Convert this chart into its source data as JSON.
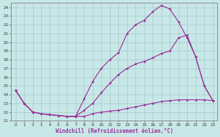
{
  "xlabel": "Windchill (Refroidissement éolien,°C)",
  "background_color": "#c8e8e8",
  "grid_color": "#aacccc",
  "line_color": "#993399",
  "xlim": [
    -0.5,
    23.5
  ],
  "ylim": [
    11,
    24.5
  ],
  "xticks": [
    0,
    1,
    2,
    3,
    4,
    5,
    6,
    7,
    8,
    9,
    10,
    11,
    12,
    13,
    14,
    15,
    16,
    17,
    18,
    19,
    20,
    21,
    22,
    23
  ],
  "yticks": [
    11,
    12,
    13,
    14,
    15,
    16,
    17,
    18,
    19,
    20,
    21,
    22,
    23,
    24
  ],
  "curve_top_x": [
    0,
    1,
    2,
    3,
    4,
    5,
    6,
    7,
    8,
    9,
    10,
    11,
    12,
    13,
    14,
    15,
    16,
    17,
    18,
    19,
    20,
    21,
    22,
    23
  ],
  "curve_top_y": [
    14.5,
    13.0,
    12.0,
    11.8,
    11.7,
    11.6,
    11.5,
    11.5,
    13.5,
    15.5,
    17.0,
    18.0,
    18.8,
    21.0,
    22.0,
    22.5,
    23.5,
    24.2,
    23.8,
    22.3,
    20.5,
    18.3,
    15.0,
    13.3
  ],
  "curve_mid_x": [
    0,
    1,
    2,
    3,
    4,
    5,
    6,
    7,
    8,
    9,
    10,
    11,
    12,
    13,
    14,
    15,
    16,
    17,
    18,
    19,
    20,
    21,
    22,
    23
  ],
  "curve_mid_y": [
    14.5,
    13.0,
    12.0,
    11.8,
    11.7,
    11.6,
    11.5,
    11.5,
    12.2,
    13.0,
    14.2,
    15.3,
    16.3,
    17.0,
    17.5,
    17.8,
    18.2,
    18.7,
    19.0,
    20.5,
    20.8,
    18.3,
    15.0,
    13.3
  ],
  "curve_bot_x": [
    0,
    1,
    2,
    3,
    4,
    5,
    6,
    7,
    8,
    9,
    10,
    11,
    12,
    13,
    14,
    15,
    16,
    17,
    18,
    19,
    20,
    21,
    22,
    23
  ],
  "curve_bot_y": [
    14.5,
    13.0,
    12.0,
    11.8,
    11.7,
    11.6,
    11.5,
    11.5,
    11.5,
    11.8,
    12.0,
    12.1,
    12.2,
    12.4,
    12.6,
    12.8,
    13.0,
    13.2,
    13.3,
    13.4,
    13.4,
    13.4,
    13.4,
    13.3
  ]
}
